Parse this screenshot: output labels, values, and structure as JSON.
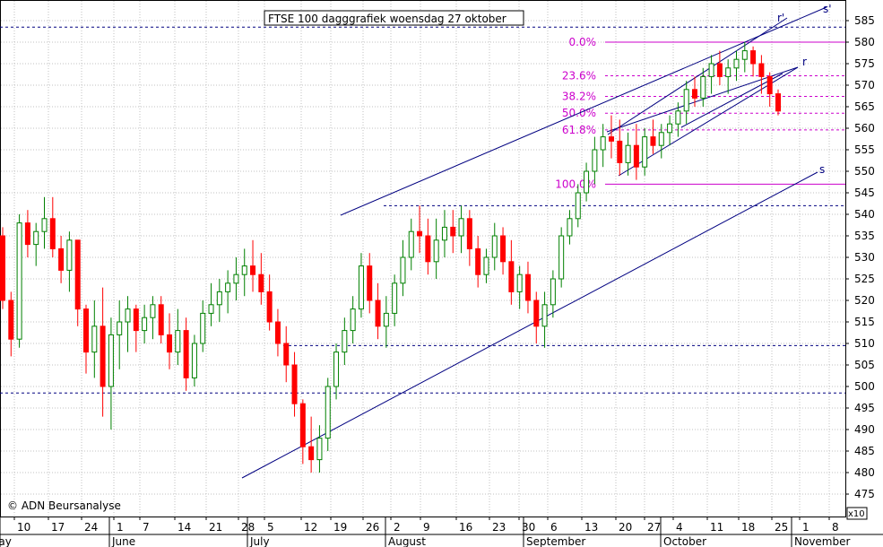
{
  "chart_data": {
    "type": "candlestick",
    "title": "FTSE 100 dagggrafiek woensdag 27 oktober",
    "copyright": "© ADN Beursanalyse",
    "scale_note": "x10",
    "ylim": [
      472,
      590
    ],
    "y_ticks": [
      475,
      480,
      485,
      490,
      495,
      500,
      505,
      510,
      515,
      520,
      525,
      530,
      535,
      540,
      545,
      550,
      555,
      560,
      565,
      570,
      575,
      580,
      585
    ],
    "x_day_labels": [
      "10",
      "17",
      "24",
      "1",
      "7",
      "14",
      "21",
      "28",
      "5",
      "12",
      "19",
      "26",
      "2",
      "9",
      "16",
      "23",
      "30",
      "6",
      "13",
      "20",
      "27",
      "4",
      "11",
      "18",
      "25",
      "1",
      "8"
    ],
    "x_month_labels": [
      "May",
      "June",
      "July",
      "August",
      "September",
      "October",
      "November"
    ],
    "horizontal_levels": [
      583.5,
      542,
      509.5,
      498.5
    ],
    "fibonacci": {
      "high": 580,
      "low": 547,
      "levels": [
        {
          "label": "0.0%",
          "value": 580.0
        },
        {
          "label": "23.6%",
          "value": 572.2
        },
        {
          "label": "38.2%",
          "value": 567.4
        },
        {
          "label": "50.0%",
          "value": 563.5
        },
        {
          "label": "61.8%",
          "value": 559.6
        },
        {
          "label": "100.0%",
          "value": 547.0
        }
      ]
    },
    "trendline_labels": [
      "s'",
      "r'",
      "r",
      "s"
    ],
    "colors": {
      "up": "#008000",
      "down": "#ff0000",
      "level_lines": "#000080",
      "fib": "#cc00cc",
      "grid": "#c0c0c0",
      "trendlines": "#000080"
    },
    "candles": [
      [
        535,
        537,
        518,
        520
      ],
      [
        520,
        522,
        507,
        511
      ],
      [
        511,
        540,
        509,
        538
      ],
      [
        538,
        541,
        530,
        533
      ],
      [
        533,
        538,
        528,
        536
      ],
      [
        536,
        544,
        532,
        539
      ],
      [
        539,
        544,
        530,
        532
      ],
      [
        532,
        535,
        524,
        527
      ],
      [
        527,
        536,
        522,
        534
      ],
      [
        534,
        534,
        514,
        518
      ],
      [
        518,
        519,
        503,
        508
      ],
      [
        508,
        520,
        502,
        514
      ],
      [
        514,
        523,
        493,
        500
      ],
      [
        500,
        516,
        490,
        512
      ],
      [
        512,
        520,
        504,
        515
      ],
      [
        515,
        521,
        508,
        518
      ],
      [
        518,
        519,
        508,
        513
      ],
      [
        513,
        519,
        510,
        516
      ],
      [
        516,
        521,
        511,
        519
      ],
      [
        519,
        521,
        510,
        512
      ],
      [
        512,
        517,
        504,
        508
      ],
      [
        508,
        518,
        505,
        513
      ],
      [
        513,
        516,
        499,
        502
      ],
      [
        502,
        512,
        500,
        510
      ],
      [
        510,
        520,
        508,
        517
      ],
      [
        517,
        524,
        514,
        519
      ],
      [
        519,
        525,
        515,
        522
      ],
      [
        522,
        527,
        517,
        524
      ],
      [
        524,
        530,
        520,
        526
      ],
      [
        526,
        532,
        521,
        528
      ],
      [
        528,
        534,
        522,
        526
      ],
      [
        526,
        531,
        519,
        522
      ],
      [
        522,
        526,
        513,
        515
      ],
      [
        515,
        518,
        507,
        510
      ],
      [
        510,
        514,
        501,
        505
      ],
      [
        505,
        508,
        493,
        496
      ],
      [
        496,
        497,
        482,
        486
      ],
      [
        486,
        493,
        480,
        483
      ],
      [
        483,
        491,
        480,
        488
      ],
      [
        488,
        502,
        485,
        500
      ],
      [
        500,
        510,
        497,
        508
      ],
      [
        508,
        516,
        505,
        513
      ],
      [
        513,
        521,
        510,
        518
      ],
      [
        518,
        531,
        516,
        528
      ],
      [
        528,
        531,
        517,
        520
      ],
      [
        520,
        524,
        511,
        514
      ],
      [
        514,
        521,
        509,
        517
      ],
      [
        517,
        526,
        514,
        524
      ],
      [
        524,
        534,
        521,
        530
      ],
      [
        530,
        539,
        527,
        536
      ],
      [
        536,
        542,
        531,
        535
      ],
      [
        535,
        539,
        526,
        529
      ],
      [
        529,
        539,
        525,
        534
      ],
      [
        534,
        541,
        530,
        537
      ],
      [
        537,
        541,
        531,
        535
      ],
      [
        535,
        542,
        531,
        539
      ],
      [
        539,
        541,
        528,
        532
      ],
      [
        532,
        535,
        523,
        526
      ],
      [
        526,
        532,
        524,
        530
      ],
      [
        530,
        538,
        527,
        535
      ],
      [
        535,
        537,
        526,
        529
      ],
      [
        529,
        534,
        519,
        522
      ],
      [
        522,
        528,
        518,
        526
      ],
      [
        526,
        529,
        517,
        520
      ],
      [
        520,
        522,
        510,
        514
      ],
      [
        514,
        522,
        509,
        519
      ],
      [
        519,
        527,
        516,
        525
      ],
      [
        525,
        537,
        523,
        535
      ],
      [
        535,
        541,
        533,
        539
      ],
      [
        539,
        547,
        537,
        545
      ],
      [
        545,
        552,
        543,
        550
      ],
      [
        550,
        558,
        547,
        555
      ],
      [
        555,
        561,
        551,
        558
      ],
      [
        558,
        563,
        553,
        557
      ],
      [
        557,
        562,
        549,
        552
      ],
      [
        552,
        559,
        549,
        556
      ],
      [
        556,
        561,
        548,
        551
      ],
      [
        551,
        560,
        549,
        558
      ],
      [
        558,
        562,
        554,
        556
      ],
      [
        556,
        561,
        553,
        559
      ],
      [
        559,
        563,
        556,
        561
      ],
      [
        561,
        566,
        558,
        564
      ],
      [
        564,
        571,
        561,
        569
      ],
      [
        569,
        572,
        565,
        567
      ],
      [
        567,
        574,
        565,
        572
      ],
      [
        572,
        577,
        568,
        575
      ],
      [
        575,
        578,
        570,
        572
      ],
      [
        572,
        576,
        568,
        574
      ],
      [
        574,
        578,
        571,
        576
      ],
      [
        576,
        580,
        573,
        578
      ],
      [
        578,
        579,
        572,
        575
      ],
      [
        575,
        577,
        568,
        572
      ],
      [
        572,
        573,
        565,
        568
      ],
      [
        568,
        569,
        563,
        564
      ]
    ]
  }
}
